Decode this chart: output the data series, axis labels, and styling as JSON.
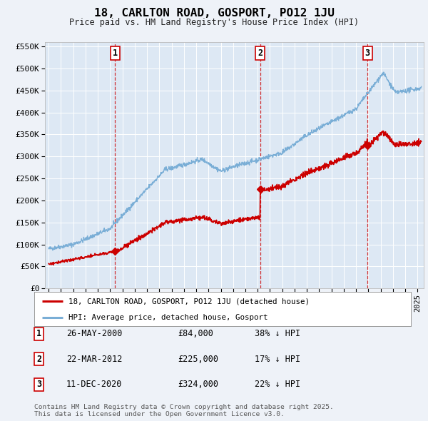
{
  "title": "18, CARLTON ROAD, GOSPORT, PO12 1JU",
  "subtitle": "Price paid vs. HM Land Registry's House Price Index (HPI)",
  "background_color": "#eef2f8",
  "plot_bg_color": "#dde8f4",
  "ylim": [
    0,
    560000
  ],
  "yticks": [
    0,
    50000,
    100000,
    150000,
    200000,
    250000,
    300000,
    350000,
    400000,
    450000,
    500000,
    550000
  ],
  "ytick_labels": [
    "£0",
    "£50K",
    "£100K",
    "£150K",
    "£200K",
    "£250K",
    "£300K",
    "£350K",
    "£400K",
    "£450K",
    "£500K",
    "£550K"
  ],
  "xlim_start": 1994.7,
  "xlim_end": 2025.5,
  "legend_line1": "18, CARLTON ROAD, GOSPORT, PO12 1JU (detached house)",
  "legend_line2": "HPI: Average price, detached house, Gosport",
  "purchase_events": [
    {
      "num": 1,
      "date_str": "26-MAY-2000",
      "price": 84000,
      "pct": "38%",
      "year_x": 2000.4
    },
    {
      "num": 2,
      "date_str": "22-MAR-2012",
      "price": 225000,
      "pct": "17%",
      "year_x": 2012.2
    },
    {
      "num": 3,
      "date_str": "11-DEC-2020",
      "price": 324000,
      "pct": "22%",
      "year_x": 2020.92
    }
  ],
  "footer_line1": "Contains HM Land Registry data © Crown copyright and database right 2025.",
  "footer_line2": "This data is licensed under the Open Government Licence v3.0.",
  "red_color": "#cc0000",
  "blue_color": "#7aaed6"
}
